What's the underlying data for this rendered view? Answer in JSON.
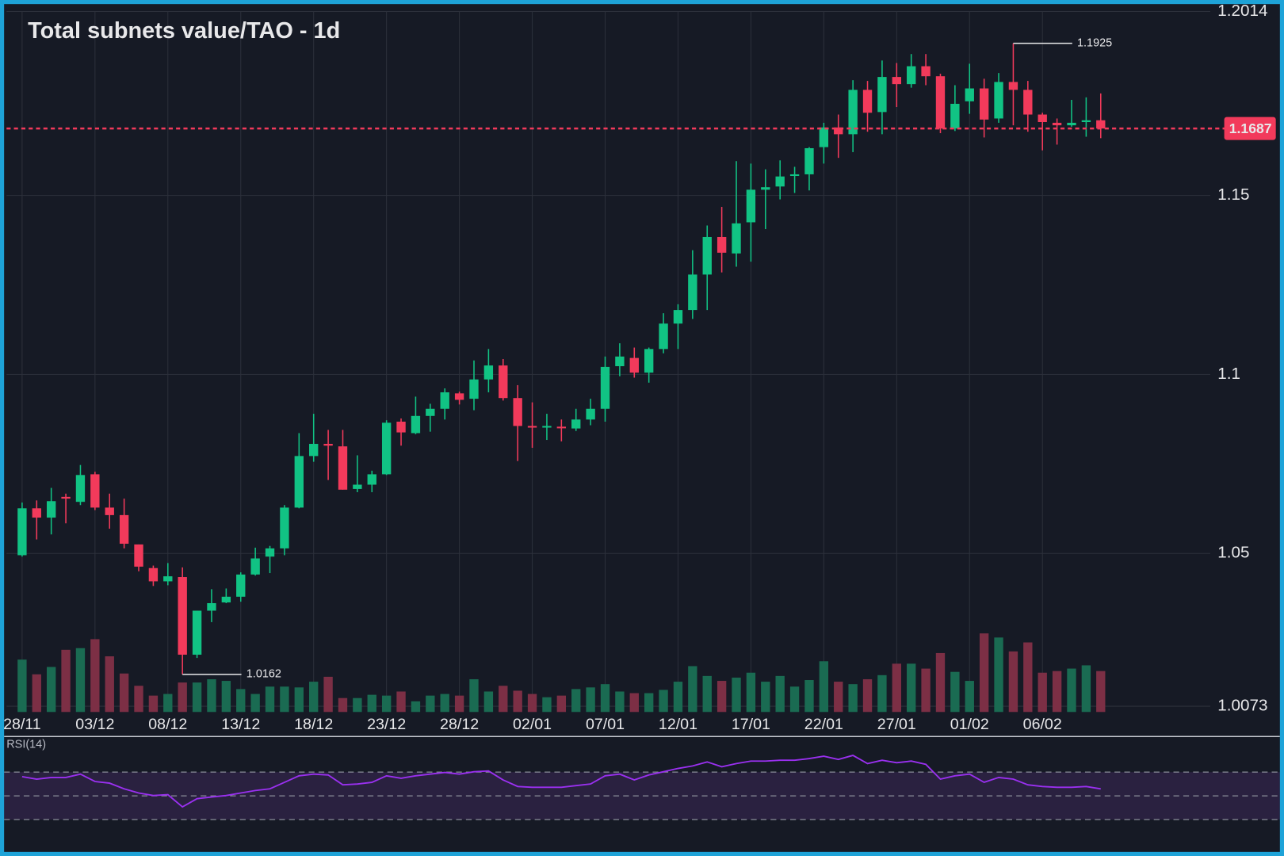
{
  "chart_data": {
    "type": "candlestick",
    "title": "Total subnets value/TAO - 1d",
    "categories": [
      "28/11",
      null,
      null,
      null,
      null,
      "03/12",
      null,
      null,
      null,
      null,
      "08/12",
      null,
      null,
      null,
      null,
      "13/12",
      null,
      null,
      null,
      null,
      "18/12",
      null,
      null,
      null,
      null,
      "23/12",
      null,
      null,
      null,
      null,
      "28/12",
      null,
      null,
      null,
      null,
      "02/01",
      null,
      null,
      null,
      null,
      "07/01",
      null,
      null,
      null,
      null,
      "12/01",
      null,
      null,
      null,
      null,
      "17/01",
      null,
      null,
      null,
      null,
      "22/01",
      null,
      null,
      null,
      null,
      "27/01",
      null,
      null,
      null,
      null,
      "01/02",
      null,
      null,
      null,
      null,
      "06/02",
      null,
      null,
      null,
      null
    ],
    "open": [
      1.0495,
      1.0626,
      1.06,
      1.0658,
      1.0644,
      1.0721,
      1.0628,
      1.0607,
      1.0525,
      1.0459,
      1.0422,
      1.0434,
      1.0217,
      1.034,
      1.0363,
      1.0379,
      1.0441,
      1.0491,
      1.0514,
      1.0628,
      1.0772,
      1.0806,
      1.0799,
      1.068,
      1.0692,
      1.0721,
      1.0868,
      1.0836,
      1.0884,
      1.0904,
      1.0947,
      1.0932,
      1.0986,
      1.1025,
      1.0934,
      1.0856,
      1.0854,
      1.0854,
      1.0849,
      1.0874,
      1.0904,
      1.1023,
      1.1046,
      1.1005,
      1.1071,
      1.1142,
      1.118,
      1.1279,
      1.1384,
      1.1338,
      1.1425,
      1.1516,
      1.1525,
      1.1557,
      1.1559,
      1.1635,
      1.169,
      1.1671,
      1.1795,
      1.1733,
      1.1831,
      1.1811,
      1.1861,
      1.1833,
      1.1687,
      1.1763,
      1.1799,
      1.1715,
      1.1817,
      1.1795,
      1.1726,
      1.1703,
      1.1696,
      1.1705,
      1.171
    ],
    "high": [
      1.0642,
      1.0648,
      1.0683,
      1.0667,
      1.0747,
      1.0728,
      1.0667,
      1.0653,
      1.0525,
      1.0466,
      1.0473,
      1.0461,
      1.034,
      1.04,
      1.0402,
      1.0447,
      1.0516,
      1.0521,
      1.0635,
      1.0836,
      1.089,
      1.0845,
      1.0845,
      1.0774,
      1.0731,
      1.0872,
      1.0877,
      1.0938,
      1.0918,
      1.0961,
      1.0952,
      1.1039,
      1.1071,
      1.1043,
      1.097,
      1.0922,
      1.089,
      1.0874,
      1.0904,
      1.0932,
      1.105,
      1.1087,
      1.1075,
      1.1075,
      1.1171,
      1.1196,
      1.1347,
      1.1416,
      1.1468,
      1.1596,
      1.1589,
      1.1573,
      1.1598,
      1.158,
      1.1635,
      1.1703,
      1.1726,
      1.1822,
      1.182,
      1.1877,
      1.187,
      1.1895,
      1.1895,
      1.184,
      1.1808,
      1.1868,
      1.1826,
      1.1842,
      1.1925,
      1.182,
      1.1731,
      1.1715,
      1.1767,
      1.1774,
      1.1785
    ],
    "low": [
      1.0491,
      1.0539,
      1.0553,
      1.0584,
      1.0635,
      1.0621,
      1.0569,
      1.0514,
      1.045,
      1.0409,
      1.0411,
      1.0162,
      1.0208,
      1.0308,
      1.0361,
      1.0365,
      1.0438,
      1.0445,
      1.0495,
      1.0626,
      1.0756,
      1.0705,
      1.0678,
      1.0671,
      1.0671,
      1.0719,
      1.0801,
      1.0833,
      1.084,
      1.0874,
      1.0916,
      1.09,
      1.095,
      1.0927,
      1.0758,
      1.0795,
      1.0817,
      1.0813,
      1.0842,
      1.0858,
      1.0868,
      1.0995,
      1.0991,
      1.0977,
      1.1059,
      1.1071,
      1.1155,
      1.118,
      1.1285,
      1.1301,
      1.1315,
      1.1406,
      1.1489,
      1.1507,
      1.1514,
      1.1589,
      1.1605,
      1.1621,
      1.1678,
      1.1671,
      1.1747,
      1.1801,
      1.1808,
      1.1674,
      1.168,
      1.1728,
      1.1662,
      1.1703,
      1.1696,
      1.1678,
      1.1626,
      1.1642,
      1.1692,
      1.1664,
      1.166
    ],
    "close": [
      1.0626,
      1.06,
      1.0646,
      1.0653,
      1.0719,
      1.0628,
      1.0607,
      1.0527,
      1.0463,
      1.0422,
      1.0436,
      1.0217,
      1.034,
      1.0361,
      1.0379,
      1.0441,
      1.0486,
      1.0514,
      1.0628,
      1.0772,
      1.0806,
      1.0801,
      1.0678,
      1.0692,
      1.0721,
      1.0865,
      1.0838,
      1.0884,
      1.0904,
      1.095,
      1.0929,
      1.0986,
      1.1025,
      1.0934,
      1.0856,
      1.0854,
      1.0856,
      1.0852,
      1.0874,
      1.0904,
      1.1021,
      1.105,
      1.1005,
      1.1071,
      1.1142,
      1.118,
      1.1279,
      1.1384,
      1.134,
      1.1422,
      1.1516,
      1.1523,
      1.1553,
      1.1559,
      1.1632,
      1.169,
      1.1671,
      1.1795,
      1.1731,
      1.1831,
      1.1811,
      1.1861,
      1.1833,
      1.1687,
      1.1756,
      1.1799,
      1.1712,
      1.1817,
      1.1795,
      1.1726,
      1.1705,
      1.1696,
      1.1703,
      1.171,
      1.1687
    ],
    "volume": [
      64,
      46,
      55,
      76,
      78,
      89,
      68,
      47,
      32,
      20,
      22,
      36,
      36,
      40,
      38,
      28,
      22,
      31,
      31,
      30,
      37,
      43,
      17,
      17,
      21,
      20,
      25,
      13,
      20,
      22,
      20,
      40,
      25,
      32,
      26,
      22,
      18,
      20,
      28,
      30,
      34,
      25,
      23,
      23,
      27,
      37,
      56,
      44,
      38,
      42,
      48,
      37,
      44,
      31,
      39,
      62,
      37,
      34,
      40,
      45,
      59,
      59,
      53,
      72,
      49,
      38,
      96,
      91,
      74,
      85,
      48,
      50,
      53,
      57,
      50
    ],
    "rsi_label": "RSI(14)",
    "rsi": [
      66.2,
      64.1,
      65.5,
      65.5,
      68.3,
      62.1,
      60.7,
      55.9,
      52.4,
      50.3,
      51.0,
      40.7,
      47.6,
      49.0,
      50.3,
      52.4,
      54.5,
      55.9,
      61.4,
      66.9,
      68.3,
      67.6,
      59.3,
      60.0,
      61.4,
      66.9,
      64.8,
      66.9,
      68.3,
      69.7,
      68.3,
      70.3,
      71.0,
      63.4,
      57.9,
      57.2,
      57.2,
      57.2,
      58.6,
      60.0,
      66.9,
      68.3,
      63.4,
      67.6,
      70.3,
      73.1,
      75.2,
      78.6,
      74.5,
      77.2,
      79.3,
      79.3,
      80.0,
      80.0,
      81.4,
      83.4,
      80.7,
      84.1,
      77.2,
      80.0,
      77.9,
      79.3,
      76.6,
      64.1,
      66.9,
      68.3,
      61.4,
      65.5,
      64.1,
      59.3,
      57.9,
      57.2,
      57.2,
      57.9,
      55.9
    ],
    "rsi_lim": [
      0,
      100
    ],
    "rsi_bands": [
      30,
      50,
      70
    ],
    "ylim": [
      1.0073,
      1.2014
    ],
    "yticks": [
      1.0073,
      1.05,
      1.1,
      1.15,
      1.2014
    ],
    "grid": true,
    "up_color": "#11c384",
    "down_color": "#f23a5b",
    "volume_up_color": "#1a6b52",
    "volume_down_color": "#7c2f45",
    "rsi_color": "#9a30f0"
  }
}
